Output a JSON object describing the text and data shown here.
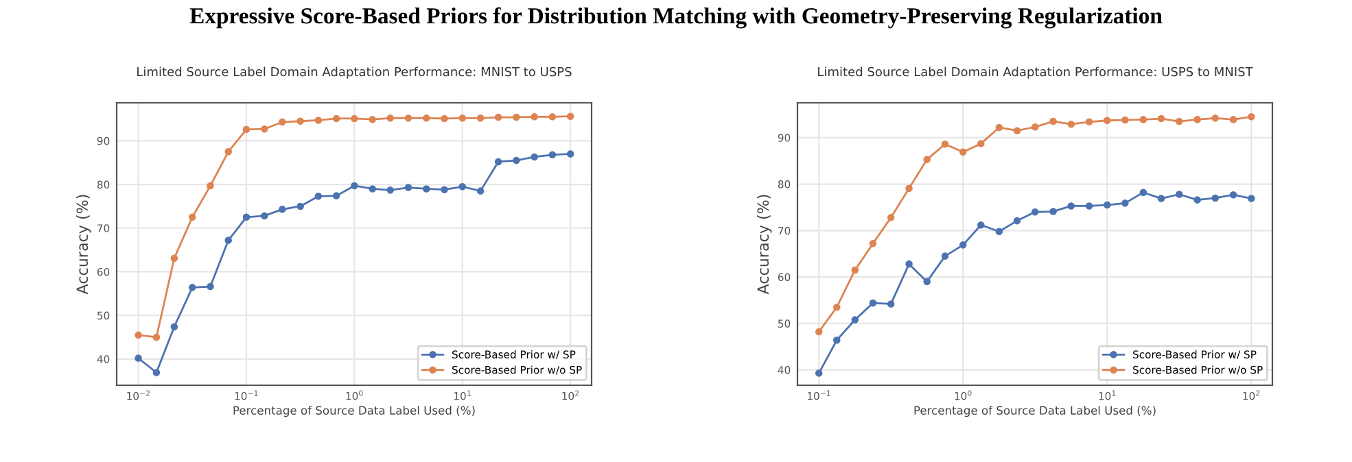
{
  "chart_data": [
    {
      "type": "other",
      "title": "Expressive Score-Based Priors for Distribution Matching with Geometry-Preserving Regularization"
    },
    {
      "type": "line",
      "title": "Limited Source Label Domain Adaptation Performance: MNIST to USPS",
      "xlabel": "Percentage of Source Data Label Used (%)",
      "ylabel": "Accuracy (%)",
      "log": "x",
      "x": [
        0.01,
        0.0147,
        0.0215,
        0.0316,
        0.0464,
        0.0681,
        0.1,
        0.147,
        0.215,
        0.316,
        0.464,
        0.681,
        1,
        1.47,
        2.15,
        3.16,
        4.64,
        6.81,
        10,
        14.7,
        21.5,
        31.6,
        46.4,
        68.1,
        100
      ],
      "series": [
        {
          "name": "Score-Based Prior w/ SP",
          "color": "#4c72b0",
          "values": [
            40.2,
            36.9,
            47.4,
            56.4,
            56.6,
            67.2,
            72.5,
            72.8,
            74.3,
            75.0,
            77.3,
            77.4,
            79.7,
            79.0,
            78.7,
            79.3,
            79.0,
            78.8,
            79.5,
            78.5,
            85.2,
            85.5,
            86.3,
            86.8,
            87.0
          ]
        },
        {
          "name": "Score-Based Prior w/o SP",
          "color": "#dd8452",
          "values": [
            45.5,
            45.0,
            63.1,
            72.5,
            79.7,
            87.5,
            92.6,
            92.7,
            94.3,
            94.5,
            94.7,
            95.1,
            95.1,
            94.9,
            95.2,
            95.2,
            95.2,
            95.1,
            95.2,
            95.2,
            95.4,
            95.4,
            95.5,
            95.5,
            95.6
          ]
        }
      ],
      "xlim": [
        0.0063,
        157
      ],
      "xticks": [
        {
          "value": 0.01,
          "label": "10$^{−2}$"
        },
        {
          "value": 0.1,
          "label": "10$^{−1}$"
        },
        {
          "value": 1,
          "label": "10$^{0}$"
        },
        {
          "value": 10,
          "label": "10$^{1}$"
        },
        {
          "value": 100,
          "label": "10$^{2}$"
        }
      ],
      "ylim": [
        34,
        98.7
      ],
      "yticks": [
        40,
        50,
        60,
        70,
        80,
        90
      ],
      "grid": true,
      "legend": "bottom right",
      "marker": "circle",
      "line_style": "solid"
    },
    {
      "type": "line",
      "title": "Limited Source Label Domain Adaptation Performance: USPS to MNIST",
      "xlabel": "Percentage of Source Data Label Used (%)",
      "ylabel": "Accuracy (%)",
      "log": "x",
      "x": [
        0.1,
        0.133,
        0.178,
        0.237,
        0.316,
        0.422,
        0.562,
        0.75,
        1,
        1.33,
        1.78,
        2.37,
        3.16,
        4.22,
        5.62,
        7.5,
        10,
        13.3,
        17.8,
        23.7,
        31.6,
        42.2,
        56.2,
        75,
        100
      ],
      "series": [
        {
          "name": "Score-Based Prior w/ SP",
          "color": "#4c72b0",
          "values": [
            39.3,
            46.4,
            50.8,
            54.4,
            54.2,
            62.8,
            59.0,
            64.5,
            66.9,
            71.2,
            69.8,
            72.1,
            74.0,
            74.1,
            75.3,
            75.3,
            75.5,
            75.9,
            78.2,
            76.9,
            77.8,
            76.6,
            77.0,
            77.7,
            76.9
          ]
        },
        {
          "name": "Score-Based Prior w/o SP",
          "color": "#dd8452",
          "values": [
            48.2,
            53.5,
            61.5,
            67.2,
            72.8,
            79.1,
            85.3,
            88.6,
            86.9,
            88.7,
            92.2,
            91.5,
            92.3,
            93.5,
            92.9,
            93.4,
            93.7,
            93.8,
            93.9,
            94.1,
            93.5,
            93.9,
            94.2,
            93.9,
            94.5
          ]
        }
      ],
      "xlim": [
        0.071,
        140
      ],
      "xticks": [
        {
          "value": 0.1,
          "label": "10$^{−1}$"
        },
        {
          "value": 1,
          "label": "10$^{0}$"
        },
        {
          "value": 10,
          "label": "10$^{1}$"
        },
        {
          "value": 100,
          "label": "10$^{2}$"
        }
      ],
      "ylim": [
        36.7,
        97.5
      ],
      "yticks": [
        40,
        50,
        60,
        70,
        80,
        90
      ],
      "grid": true,
      "legend": "bottom right",
      "marker": "circle",
      "line_style": "solid"
    }
  ]
}
